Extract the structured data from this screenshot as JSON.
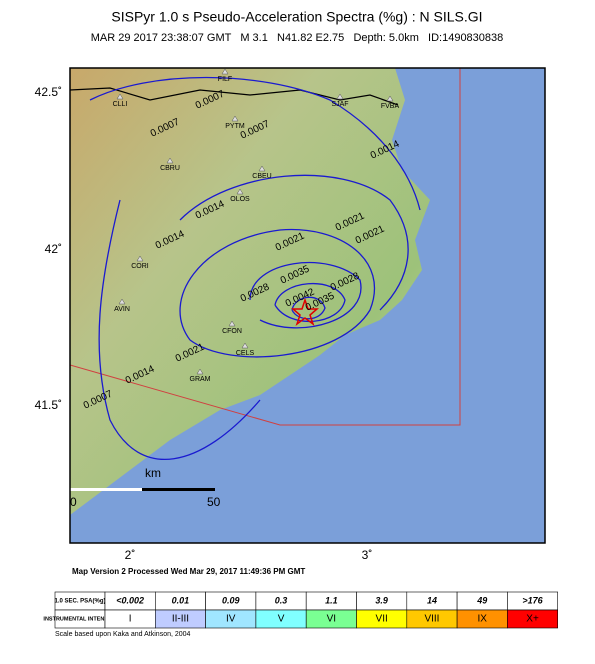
{
  "header": {
    "title": "SISPyr 1.0 s Pseudo-Acceleration Spectra (%g) : N SILS.GI",
    "subtitle": "MAR 29 2017 23:38:07 GMT   M 3.1   N41.82 E2.75   Depth: 5.0km   ID:1490830838"
  },
  "map": {
    "lat_labels": [
      "42.5˚",
      "42˚",
      "41.5˚"
    ],
    "lon_labels": [
      "2˚",
      "3˚"
    ],
    "scale": {
      "unit": "km",
      "start": "0",
      "end": "50"
    },
    "stations": [
      "FILF",
      "CLLI",
      "PYTM",
      "SJAF",
      "FVBA",
      "CBRU",
      "CBEU",
      "OLOS",
      "CORI",
      "AVIN",
      "CFON",
      "CELS",
      "GRAM"
    ],
    "contour_labels": [
      "0.0007",
      "0.0007",
      "0.0007",
      "0.0014",
      "0.0014",
      "0.0014",
      "0.0021",
      "0.0021",
      "0.0028",
      "0.0035",
      "0.0042",
      "0.0035",
      "0.0028",
      "0.0021",
      "0.0014",
      "0.0021",
      "0.0007"
    ]
  },
  "footer": {
    "map_version": "Map Version 2 Processed Wed Mar 29, 2017 11:49:36 PM GMT",
    "scale_note": "Scale based upon Kaka and Atkinson, 2004"
  },
  "legend": {
    "row_headers": [
      "1.0 SEC. PSA(%g)",
      "INSTRUMENTAL INTENSITY"
    ],
    "psa": [
      "<0.002",
      "0.01",
      "0.09",
      "0.3",
      "1.1",
      "3.9",
      "14",
      "49",
      ">176"
    ],
    "intensity": [
      "I",
      "II-III",
      "IV",
      "V",
      "VI",
      "VII",
      "VIII",
      "IX",
      "X+"
    ],
    "colors": [
      "#ffffff",
      "#bfccff",
      "#a0e6ff",
      "#80ffff",
      "#7aff93",
      "#ffff00",
      "#ffc800",
      "#ff9100",
      "#ff0000"
    ]
  }
}
